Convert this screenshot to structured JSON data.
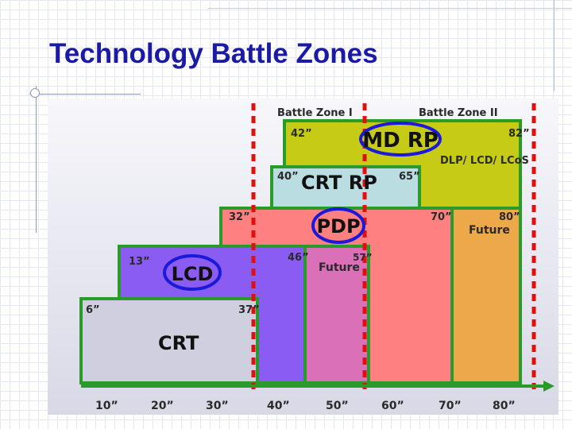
{
  "slide": {
    "title": "Technology Battle Zones"
  },
  "figure": {
    "zone_headers": [
      "Battle Zone I",
      "Battle Zone II"
    ],
    "technologies": [
      {
        "name": "MD RP",
        "from": "42”",
        "to": "82”",
        "note": "DLP/ LCD/ LCoS",
        "circled": true,
        "color": "#c6cc16"
      },
      {
        "name": "CRT RP",
        "from": "40”",
        "to": "65”",
        "circled": false,
        "color": "#b9dde0"
      },
      {
        "name": "PDP",
        "from": "32”",
        "to": "70”",
        "circled": true,
        "color": "#ff8080"
      },
      {
        "name": "LCD",
        "from": "13”",
        "to": "46”",
        "circled": true,
        "color": "#8a5cf2"
      },
      {
        "name": "CRT",
        "from": "6”",
        "to": "37”",
        "circled": false,
        "color": "#cfcfe0"
      }
    ],
    "future_boxes": [
      {
        "label": "Future",
        "value": "57”",
        "color": "#d970b8"
      },
      {
        "label": "Future",
        "value": "80”",
        "color": "#eda84a"
      }
    ],
    "axis_ticks": [
      "10”",
      "20”",
      "30”",
      "40”",
      "50”",
      "60”",
      "70”",
      "80”"
    ],
    "colors": {
      "border_green": "#2a9a2a",
      "divider_red": "#e01010",
      "circle_blue": "#1a1ad8",
      "axis_arrow": "#2a9a2a",
      "title_blue": "#1a1aa6"
    }
  }
}
